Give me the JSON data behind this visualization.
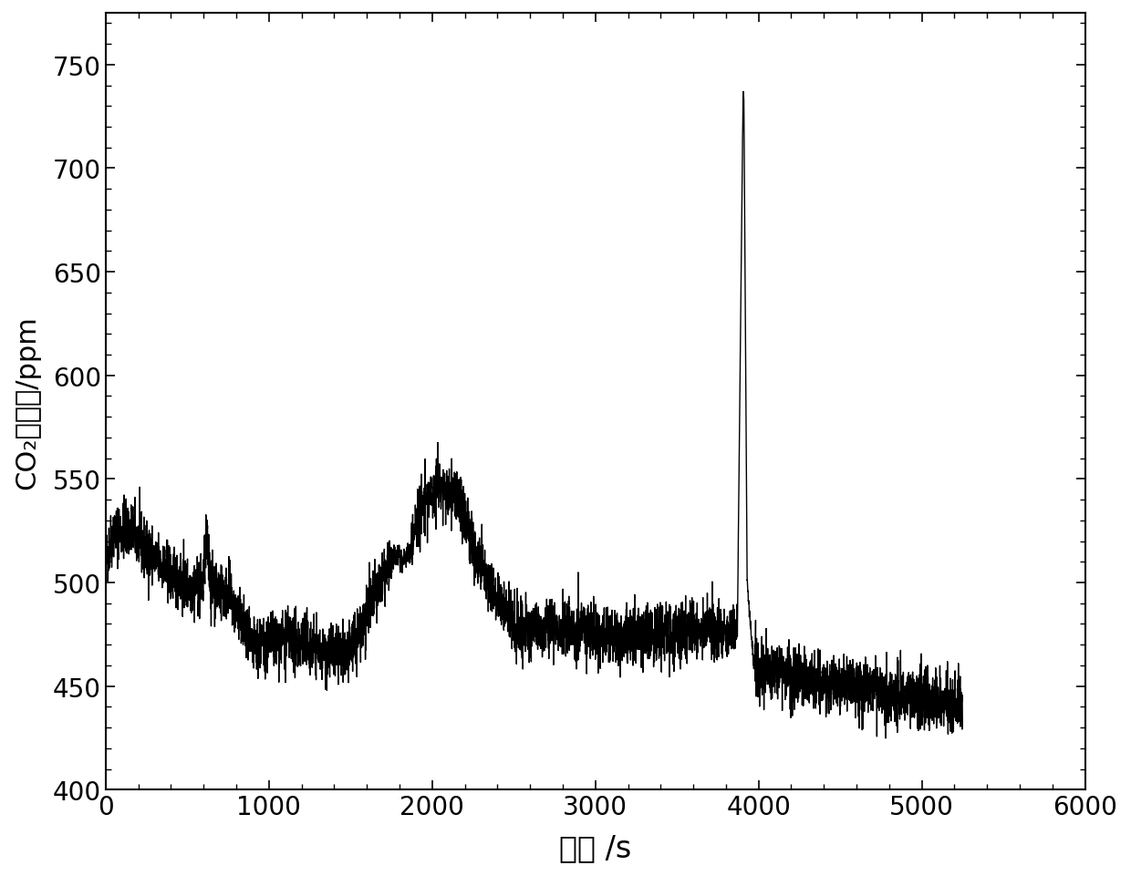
{
  "xlabel": "时间 /s",
  "ylabel_line1": "CO₂产生量/ppm",
  "xlim": [
    0,
    6000
  ],
  "ylim": [
    400,
    775
  ],
  "xticks": [
    0,
    1000,
    2000,
    3000,
    4000,
    5000,
    6000
  ],
  "yticks": [
    400,
    450,
    500,
    550,
    600,
    650,
    700,
    750
  ],
  "line_color": "#000000",
  "line_width": 1.0,
  "background_color": "#ffffff",
  "seed": 42
}
